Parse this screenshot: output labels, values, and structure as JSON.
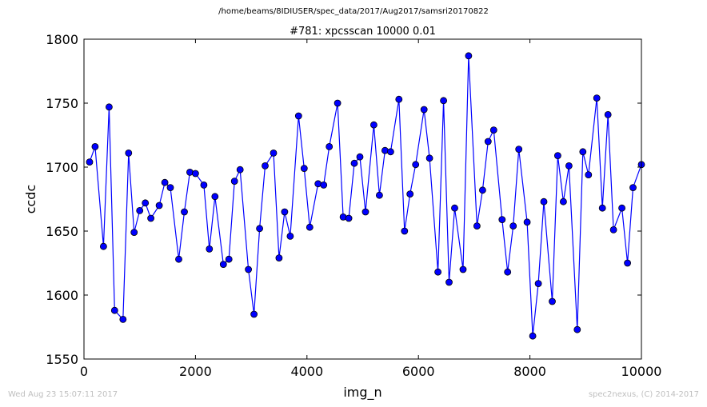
{
  "suptitle": "/home/beams/8IDIUSER/spec_data/2017/Aug2017/samsri20170822",
  "footer": {
    "timestamp": "Wed Aug 23 15:07:11 2017",
    "credit": "spec2nexus, (C) 2014-2017"
  },
  "colors": {
    "series": "#0000ff",
    "axes": "#000000",
    "footer": "#bfbfbf"
  },
  "chart_data": {
    "type": "line",
    "title": "#781: xpcsscan 10000 0.01",
    "xlabel": "img_n",
    "ylabel": "ccdc",
    "xlim": [
      0,
      10000
    ],
    "ylim": [
      1550,
      1800
    ],
    "xticks": [
      0,
      2000,
      4000,
      6000,
      8000,
      10000
    ],
    "yticks": [
      1550,
      1600,
      1650,
      1700,
      1750,
      1800
    ],
    "xtick_labels": [
      "0",
      "2000",
      "4000",
      "6000",
      "8000",
      "10000"
    ],
    "ytick_labels": [
      "1550",
      "1600",
      "1650",
      "1700",
      "1750",
      "1800"
    ],
    "markers": true,
    "series": [
      {
        "x": [
          100,
          200,
          350,
          450,
          550,
          700,
          800,
          900,
          1000,
          1100,
          1200,
          1350,
          1450,
          1550,
          1700,
          1800,
          1900,
          2000,
          2150,
          2250,
          2350,
          2500,
          2600,
          2700,
          2800,
          2950,
          3050,
          3150,
          3250,
          3400,
          3500,
          3600,
          3700,
          3850,
          3950,
          4050,
          4200,
          4300,
          4400,
          4550,
          4650,
          4750,
          4850,
          4950,
          5050,
          5200,
          5300,
          5400,
          5500,
          5650,
          5750,
          5850,
          5950,
          6100,
          6200,
          6350,
          6450,
          6550,
          6650,
          6800,
          6900,
          7050,
          7150,
          7250,
          7350,
          7500,
          7600,
          7700,
          7800,
          7950,
          8050,
          8150,
          8250,
          8400,
          8500,
          8600,
          8700,
          8850,
          8950,
          9050,
          9200,
          9300,
          9400,
          9500,
          9650,
          9750,
          9850,
          10000
        ],
        "y": [
          1704,
          1716,
          1638,
          1747,
          1588,
          1581,
          1711,
          1649,
          1666,
          1672,
          1660,
          1670,
          1688,
          1684,
          1628,
          1665,
          1696,
          1695,
          1686,
          1636,
          1677,
          1624,
          1628,
          1689,
          1698,
          1620,
          1585,
          1652,
          1701,
          1711,
          1629,
          1665,
          1646,
          1740,
          1699,
          1653,
          1687,
          1686,
          1716,
          1750,
          1661,
          1660,
          1703,
          1708,
          1665,
          1733,
          1678,
          1713,
          1712,
          1753,
          1650,
          1679,
          1702,
          1745,
          1707,
          1618,
          1752,
          1610,
          1668,
          1620,
          1787,
          1654,
          1682,
          1720,
          1729,
          1659,
          1618,
          1654,
          1714,
          1657,
          1568,
          1609,
          1673,
          1595,
          1709,
          1673,
          1701,
          1573,
          1712,
          1694,
          1754,
          1668,
          1741,
          1651,
          1668,
          1625,
          1684,
          1702
        ]
      }
    ]
  }
}
